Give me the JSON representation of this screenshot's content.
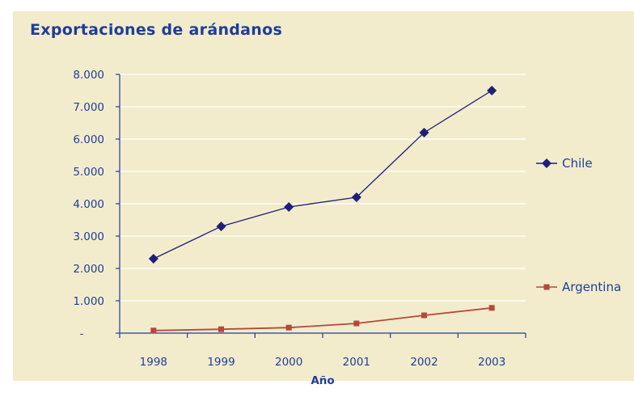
{
  "chart_data": {
    "type": "line",
    "title": "Exportaciones de arándanos",
    "xlabel": "Año",
    "ylabel": "",
    "categories": [
      "1998",
      "1999",
      "2000",
      "2001",
      "2002",
      "2003"
    ],
    "yticks": [
      "-",
      "1.000",
      "2.000",
      "3.000",
      "4.000",
      "5.000",
      "6.000",
      "7.000",
      "8.000"
    ],
    "ylim": [
      0,
      8000
    ],
    "grid": true,
    "legend": "right",
    "series": [
      {
        "name": "Chile",
        "values": [
          2300,
          3300,
          3900,
          4200,
          6200,
          7500
        ],
        "color": "#1f1f7a",
        "marker": "diamond"
      },
      {
        "name": "Argentina",
        "values": [
          80,
          120,
          170,
          300,
          550,
          780
        ],
        "color": "#b8473a",
        "marker": "square"
      }
    ],
    "colors": {
      "background": "#f2eccc",
      "text": "#1f3d99",
      "grid": "#ffffff"
    }
  }
}
